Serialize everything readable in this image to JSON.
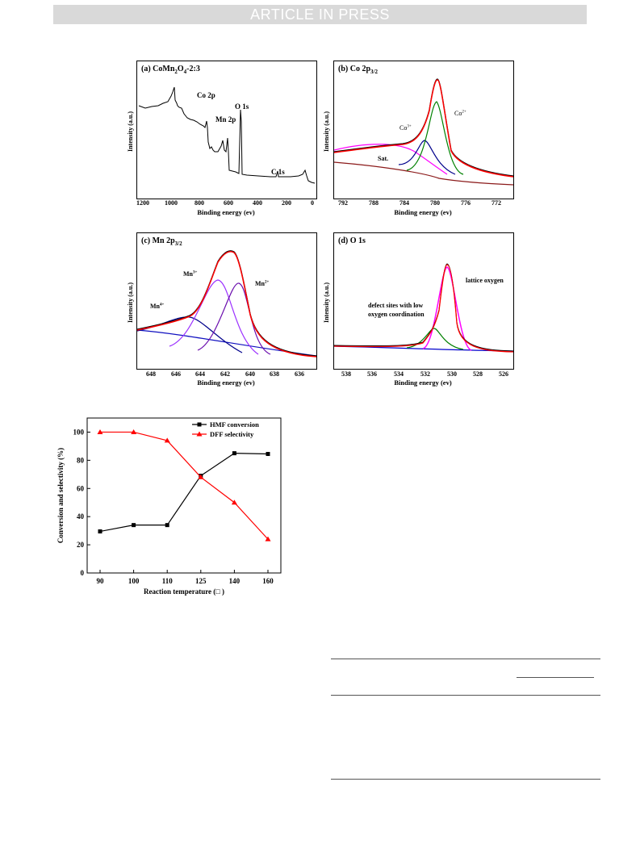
{
  "banner": "ARTICLE IN PRESS",
  "panels": {
    "a": {
      "title_prefix": "(a) CoMn",
      "sub1": "2",
      "title_mid": "O",
      "sub2": "4",
      "title_suffix": "-2:3",
      "ylabel": "Intensity (a.u.)",
      "xlabel": "Binding energy (ev)",
      "ticks": [
        "1200",
        "1000",
        "800",
        "600",
        "400",
        "200",
        "0"
      ],
      "labels": {
        "co2p": "Co 2p",
        "o1s": "O 1s",
        "mn2p": "Mn 2p",
        "c1s": "C 1s"
      }
    },
    "b": {
      "title_prefix": "(b) Co 2p",
      "sub": "3/2",
      "ylabel": "Intensity (a.u.)",
      "xlabel": "Binding energy (ev)",
      "ticks": [
        "792",
        "788",
        "784",
        "780",
        "776",
        "772"
      ],
      "labels": {
        "co3": "Co",
        "co3sup": "3+",
        "co2": "Co",
        "co2sup": "2+",
        "sat": "Sat."
      }
    },
    "c": {
      "title_prefix": "(c) Mn 2p",
      "sub": "3/2",
      "ylabel": "Intensity (a.u.)",
      "xlabel": "Binding energy (ev)",
      "ticks": [
        "648",
        "646",
        "644",
        "642",
        "640",
        "638",
        "636"
      ],
      "labels": {
        "mn4": "Mn",
        "mn4sup": "4+",
        "mn3": "Mn",
        "mn3sup": "3+",
        "mn2": "Mn",
        "mn2sup": "2+"
      }
    },
    "d": {
      "title": "(d) O 1s",
      "ylabel": "Intensity (a.u.)",
      "xlabel": "Binding energy (ev)",
      "ticks": [
        "538",
        "536",
        "534",
        "532",
        "530",
        "528",
        "526"
      ],
      "labels": {
        "lattice": "lattice oxygen",
        "defect1": "defect sites with low",
        "defect2": "oxygen coordination"
      }
    }
  },
  "chart_data": {
    "type": "line",
    "categories": [
      "90",
      "100",
      "110",
      "125",
      "140",
      "160"
    ],
    "series": [
      {
        "name": "HMF conversion",
        "color": "#000000",
        "marker": "square",
        "values": [
          29.5,
          34,
          34,
          69,
          85,
          84.5
        ]
      },
      {
        "name": "DFF selectivity",
        "color": "#ff0000",
        "marker": "triangle",
        "values": [
          100,
          100,
          94,
          68,
          50,
          24
        ]
      }
    ],
    "ylim": [
      0,
      110
    ],
    "yticks": [
      "0",
      "20",
      "40",
      "60",
      "80",
      "100"
    ],
    "xlabel": "Reaction temperature (□ )",
    "ylabel": "Conversion and selectivity (%)",
    "legend": "top-right"
  }
}
